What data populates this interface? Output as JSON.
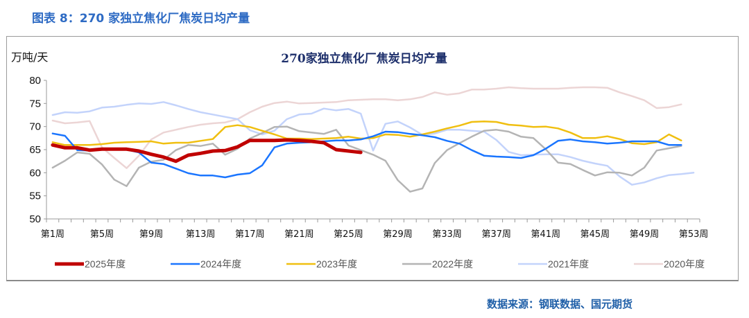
{
  "figure_title": "图表 8：270 家独立焦化厂焦炭日均产量",
  "source": "数据来源：钢联数据、国元期货",
  "chart_data": {
    "type": "line",
    "title": "270家独立焦化厂焦炭日均产量",
    "ylabel": "万吨/天",
    "xlabel": "",
    "ylim": [
      50,
      80
    ],
    "yticks": [
      50,
      55,
      60,
      65,
      70,
      75,
      80
    ],
    "x_tick_labels": [
      "第1周",
      "第5周",
      "第9周",
      "第13周",
      "第17周",
      "第21周",
      "第25周",
      "第29周",
      "第33周",
      "第37周",
      "第41周",
      "第45周",
      "第49周",
      "第53周"
    ],
    "x_categories": "第1周 … 第53周",
    "grid": false,
    "legend_position": "bottom",
    "series": [
      {
        "name": "2025年度",
        "color": "#c00000",
        "width": 5,
        "values": [
          66.0,
          65.4,
          65.4,
          64.9,
          65.1,
          65.1,
          65.1,
          64.7,
          64.0,
          63.4,
          62.5,
          63.8,
          64.2,
          64.7,
          64.8,
          65.6,
          67.0,
          67.0,
          67.0,
          67.1,
          67.0,
          66.8,
          66.5,
          65.0,
          64.7,
          64.4
        ]
      },
      {
        "name": "2024年度",
        "color": "#1a75ff",
        "width": 2.5,
        "values": [
          68.5,
          68.0,
          64.9,
          64.8,
          65.0,
          65.0,
          65.0,
          64.4,
          62.2,
          61.9,
          60.9,
          59.9,
          59.4,
          59.4,
          59.0,
          59.6,
          59.9,
          61.6,
          65.5,
          66.3,
          66.5,
          66.6,
          66.8,
          67.0,
          67.0,
          67.2,
          67.9,
          68.9,
          68.8,
          68.4,
          68.1,
          67.7,
          66.9,
          66.3,
          64.9,
          63.7,
          63.5,
          63.4,
          63.2,
          63.8,
          65.2,
          66.9,
          67.2,
          66.8,
          66.6,
          66.3,
          66.5,
          66.8,
          66.8,
          66.8,
          66.0,
          66.0
        ]
      },
      {
        "name": "2023年度",
        "color": "#f0bf10",
        "width": 2.5,
        "values": [
          66.6,
          66.0,
          66.0,
          66.0,
          66.2,
          66.5,
          66.6,
          66.7,
          66.8,
          66.3,
          66.5,
          66.5,
          66.9,
          67.3,
          69.9,
          70.3,
          69.9,
          69.1,
          68.3,
          67.4,
          67.4,
          67.3,
          67.4,
          67.5,
          67.8,
          67.4,
          67.5,
          68.3,
          68.2,
          67.8,
          68.3,
          68.9,
          69.6,
          70.2,
          71.0,
          71.1,
          71.0,
          70.4,
          70.2,
          69.9,
          70.0,
          69.6,
          68.7,
          67.5,
          67.5,
          67.9,
          67.3,
          66.4,
          66.2,
          66.6,
          68.3,
          67.0
        ]
      },
      {
        "name": "2022年度",
        "color": "#b4b4b4",
        "width": 2.5,
        "values": [
          61.1,
          62.6,
          64.4,
          64.1,
          61.8,
          58.5,
          57.1,
          61.1,
          62.4,
          62.8,
          64.9,
          66.0,
          65.8,
          66.3,
          63.9,
          65.2,
          67.4,
          68.6,
          69.9,
          70.0,
          69.0,
          68.7,
          68.4,
          69.3,
          65.9,
          64.9,
          63.9,
          62.6,
          58.4,
          55.9,
          56.6,
          62.1,
          64.9,
          66.4,
          67.8,
          69.1,
          69.3,
          68.9,
          67.8,
          67.5,
          65.1,
          62.2,
          61.9,
          60.6,
          59.4,
          60.1,
          60.0,
          59.4,
          61.1,
          64.8,
          65.3,
          65.8
        ]
      },
      {
        "name": "2021年度",
        "color": "#c3d3fb",
        "width": 2.5,
        "values": [
          72.5,
          73.1,
          73.0,
          73.3,
          74.1,
          74.3,
          74.7,
          75.0,
          74.9,
          75.3,
          74.6,
          73.8,
          73.1,
          72.6,
          72.1,
          71.6,
          69.2,
          68.3,
          69.1,
          71.6,
          72.6,
          72.8,
          73.9,
          73.5,
          73.8,
          72.8,
          64.8,
          70.6,
          71.1,
          69.8,
          68.2,
          68.5,
          69.3,
          69.3,
          69.1,
          68.9,
          67.1,
          64.5,
          63.8,
          63.9,
          64.0,
          64.0,
          63.4,
          62.6,
          62.0,
          61.5,
          59.2,
          57.4,
          57.9,
          58.8,
          59.5,
          59.7,
          60.0
        ]
      },
      {
        "name": "2020年度",
        "color": "#ecd5d5",
        "width": 2.5,
        "values": [
          71.3,
          70.7,
          70.9,
          71.2,
          65.5,
          63.2,
          61.0,
          63.7,
          67.2,
          68.7,
          69.3,
          69.9,
          70.4,
          70.7,
          70.9,
          71.6,
          73.1,
          74.3,
          75.1,
          75.4,
          75.0,
          75.1,
          75.2,
          75.3,
          75.7,
          75.8,
          75.9,
          75.9,
          75.7,
          75.9,
          76.4,
          77.4,
          76.9,
          77.2,
          78.0,
          78.0,
          78.2,
          78.5,
          78.3,
          78.2,
          78.2,
          78.2,
          78.4,
          78.5,
          78.5,
          78.4,
          77.4,
          76.6,
          75.7,
          74.0,
          74.2,
          74.8
        ]
      }
    ]
  },
  "colors": {
    "figure_title": "#2e6bc4",
    "chart_title": "#1d2f6b",
    "source": "#1f5fa8"
  }
}
